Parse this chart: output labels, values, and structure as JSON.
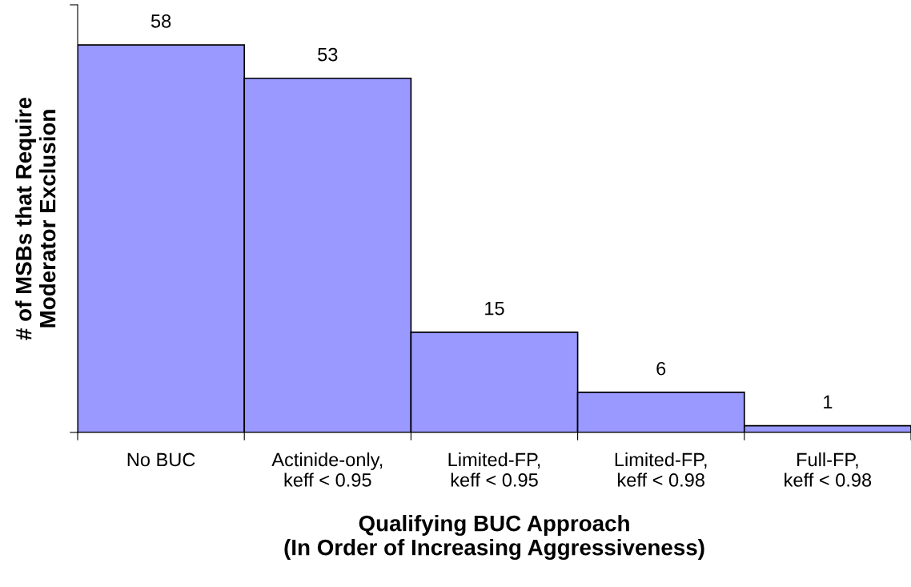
{
  "chart_data": {
    "type": "bar",
    "categories": [
      "No BUC",
      "Actinide-only,\nkeff < 0.95",
      "Limited-FP,\nkeff < 0.95",
      "Limited-FP,\nkeff < 0.98",
      "Full-FP,\nkeff < 0.98"
    ],
    "values": [
      58,
      53,
      15,
      6,
      1
    ],
    "color": "#9999ff",
    "xlabel": "Qualifying BUC Approach\n(In Order of Increasing Aggressiveness)",
    "ylabel": "# of MSBs that Require\nModerator Exclusion",
    "ylim": [
      0,
      64
    ],
    "yticks": [
      {
        "value": 0,
        "label": null
      },
      {
        "value": 64,
        "label": null
      }
    ],
    "data_labels": true,
    "grid": false
  }
}
